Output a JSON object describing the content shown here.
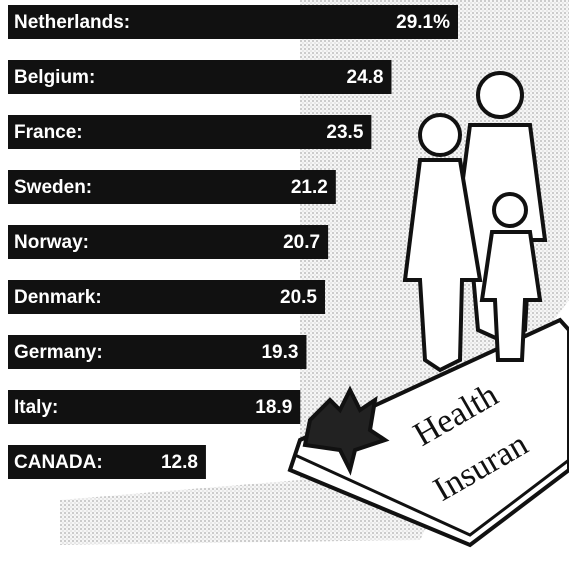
{
  "chart_data": {
    "type": "bar",
    "categories": [
      "Netherlands:",
      "Belgium:",
      "France:",
      "Sweden:",
      "Norway:",
      "Denmark:",
      "Germany:",
      "Italy:",
      "CANADA:"
    ],
    "values": [
      29.1,
      24.8,
      23.5,
      21.2,
      20.7,
      20.5,
      19.3,
      18.9,
      12.8
    ],
    "value_labels": [
      "29.1%",
      "24.8",
      "23.5",
      "21.2",
      "20.7",
      "20.5",
      "19.3",
      "18.9",
      "12.8"
    ],
    "color": "#111111",
    "annotations": [
      "Health",
      "Insuran"
    ]
  }
}
